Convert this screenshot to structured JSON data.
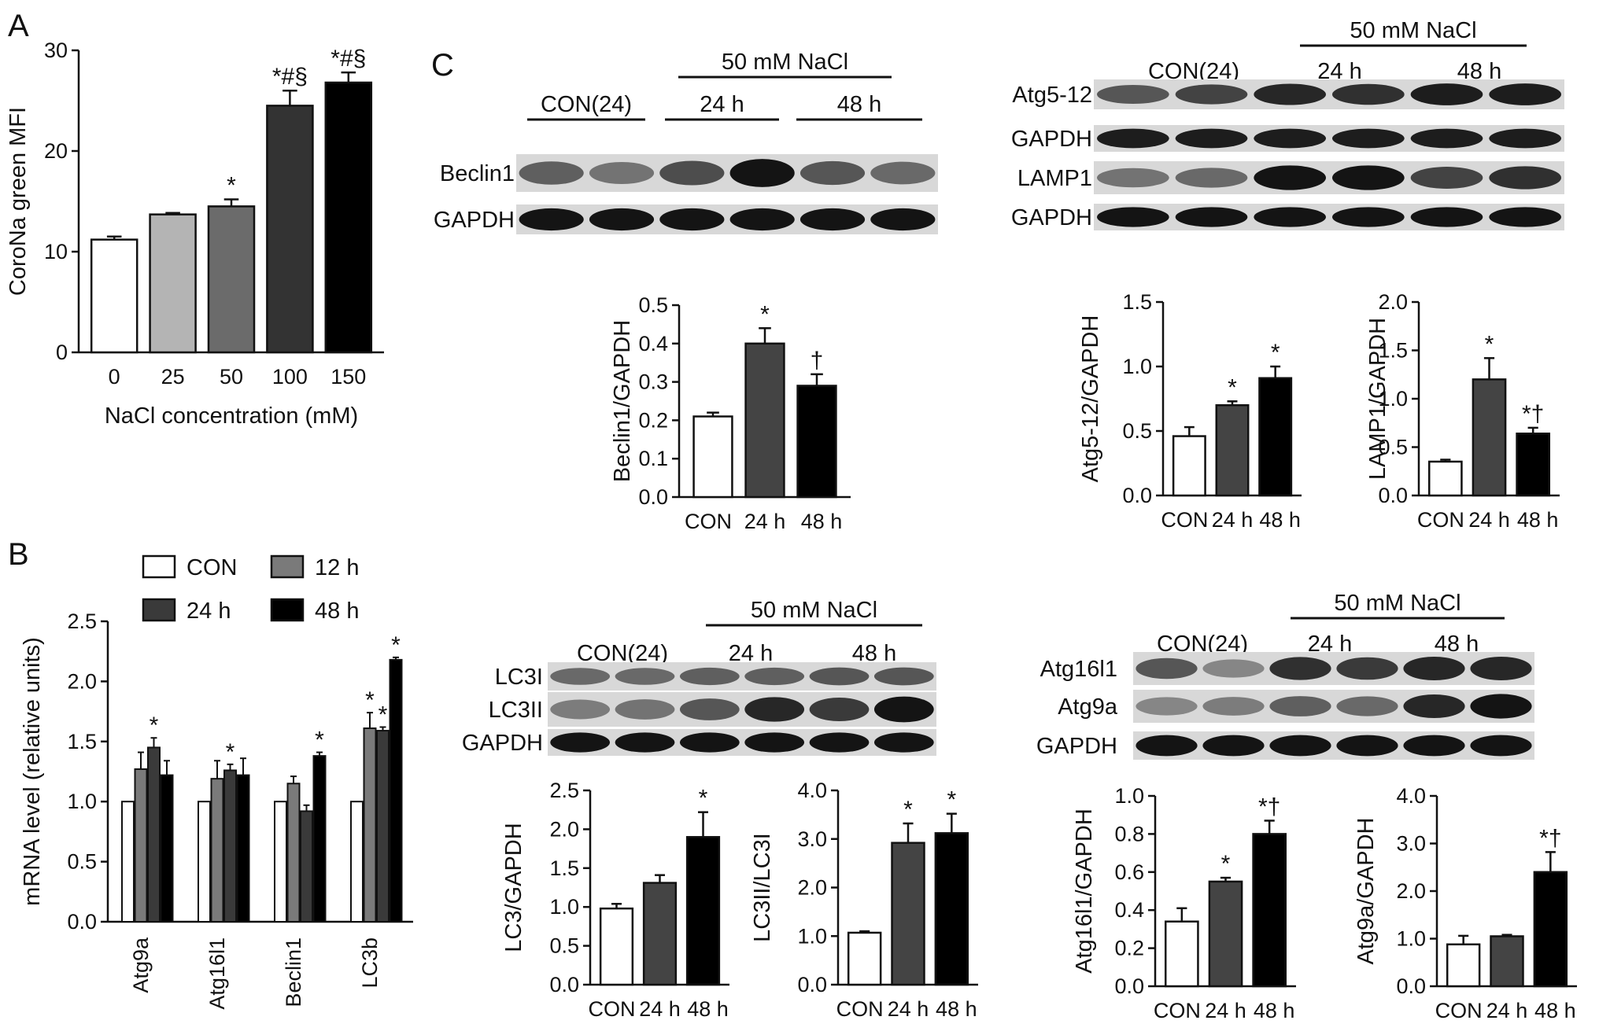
{
  "panel_labels": [
    "A",
    "B",
    "C"
  ],
  "chart_data": [
    {
      "id": "A",
      "type": "bar",
      "categories": [
        "0",
        "25",
        "50",
        "100",
        "150"
      ],
      "values": [
        11.2,
        13.7,
        14.5,
        24.5,
        26.8
      ],
      "errors": [
        0.3,
        0.15,
        0.7,
        1.5,
        1.0
      ],
      "marks": [
        "",
        "",
        "*",
        "*#§",
        "*#§"
      ],
      "colors": [
        "#ffffff",
        "#b4b4b4",
        "#6b6b6b",
        "#333333",
        "#000000"
      ],
      "ylabel": "CoroNa green MFI",
      "xlabel": "NaCl concentration (mM)",
      "ylim": [
        0,
        30
      ],
      "yticks": [
        "0",
        "10",
        "20",
        "30"
      ]
    },
    {
      "id": "B",
      "type": "bar",
      "categories": [
        "Atg9a",
        "Atg16l1",
        "Beclin1",
        "LC3b"
      ],
      "series": [
        {
          "name": "CON",
          "color": "#ffffff",
          "values": [
            1.0,
            1.0,
            1.0,
            1.0
          ],
          "errors": [
            0,
            0,
            0,
            0
          ],
          "marks": [
            "",
            "",
            "",
            ""
          ]
        },
        {
          "name": "12 h",
          "color": "#7a7a7a",
          "values": [
            1.27,
            1.19,
            1.15,
            1.61
          ],
          "errors": [
            0.14,
            0.15,
            0.06,
            0.13
          ],
          "marks": [
            "",
            "",
            "",
            "*"
          ]
        },
        {
          "name": "24 h",
          "color": "#3a3a3a",
          "values": [
            1.45,
            1.26,
            0.92,
            1.59
          ],
          "errors": [
            0.08,
            0.05,
            0.05,
            0.03
          ],
          "marks": [
            "*",
            "*",
            "",
            "*"
          ]
        },
        {
          "name": "48 h",
          "color": "#000000",
          "values": [
            1.22,
            1.22,
            1.38,
            2.18
          ],
          "errors": [
            0.12,
            0.14,
            0.03,
            0.02
          ],
          "marks": [
            "",
            "",
            "*",
            "*"
          ]
        }
      ],
      "ylabel": "mRNA level (relative units)",
      "ylim": [
        0,
        2.5
      ],
      "yticks": [
        "0.0",
        "0.5",
        "1.0",
        "1.5",
        "2.0",
        "2.5"
      ]
    },
    {
      "id": "Beclin1",
      "type": "bar",
      "categories": [
        "CON",
        "24 h",
        "48 h"
      ],
      "values": [
        0.21,
        0.4,
        0.29
      ],
      "errors": [
        0.01,
        0.04,
        0.03
      ],
      "marks": [
        "",
        "*",
        "†"
      ],
      "colors": [
        "#ffffff",
        "#444444",
        "#000000"
      ],
      "ylabel": "Beclin1/GAPDH",
      "ylim": [
        0,
        0.5
      ],
      "yticks": [
        "0.0",
        "0.1",
        "0.2",
        "0.3",
        "0.4",
        "0.5"
      ]
    },
    {
      "id": "Atg5",
      "type": "bar",
      "categories": [
        "CON",
        "24 h",
        "48 h"
      ],
      "values": [
        0.46,
        0.7,
        0.91
      ],
      "errors": [
        0.07,
        0.03,
        0.09
      ],
      "marks": [
        "",
        "*",
        "*"
      ],
      "colors": [
        "#ffffff",
        "#444444",
        "#000000"
      ],
      "ylabel": "Atg5-12/GAPDH",
      "ylim": [
        0,
        1.5
      ],
      "yticks": [
        "0.0",
        "0.5",
        "1.0",
        "1.5"
      ]
    },
    {
      "id": "LAMP1",
      "type": "bar",
      "categories": [
        "CON",
        "24 h",
        "48 h"
      ],
      "values": [
        0.35,
        1.2,
        0.64
      ],
      "errors": [
        0.02,
        0.22,
        0.06
      ],
      "marks": [
        "",
        "*",
        "*†"
      ],
      "colors": [
        "#ffffff",
        "#444444",
        "#000000"
      ],
      "ylabel": "LAMP1/GAPDH",
      "ylim": [
        0,
        2.0
      ],
      "yticks": [
        "0.0",
        "0.5",
        "1.0",
        "1.5",
        "2.0"
      ]
    },
    {
      "id": "LC3",
      "type": "bar",
      "categories": [
        "CON",
        "24 h",
        "48 h"
      ],
      "values": [
        0.98,
        1.31,
        1.9
      ],
      "errors": [
        0.06,
        0.1,
        0.32
      ],
      "marks": [
        "",
        "",
        "*"
      ],
      "colors": [
        "#ffffff",
        "#444444",
        "#000000"
      ],
      "ylabel": "LC3/GAPDH",
      "ylim": [
        0,
        2.5
      ],
      "yticks": [
        "0.0",
        "0.5",
        "1.0",
        "1.5",
        "2.0",
        "2.5"
      ]
    },
    {
      "id": "LC3ratio",
      "type": "bar",
      "categories": [
        "CON",
        "24 h",
        "48 h"
      ],
      "values": [
        1.07,
        2.92,
        3.12
      ],
      "errors": [
        0.03,
        0.4,
        0.4
      ],
      "marks": [
        "",
        "*",
        "*"
      ],
      "colors": [
        "#ffffff",
        "#444444",
        "#000000"
      ],
      "ylabel": "LC3II/LC3I",
      "ylim": [
        0,
        4.0
      ],
      "yticks": [
        "0.0",
        "1.0",
        "2.0",
        "3.0",
        "4.0"
      ]
    },
    {
      "id": "Atg16",
      "type": "bar",
      "categories": [
        "CON",
        "24 h",
        "48 h"
      ],
      "values": [
        0.34,
        0.55,
        0.8
      ],
      "errors": [
        0.07,
        0.02,
        0.07
      ],
      "marks": [
        "",
        "*",
        "*†"
      ],
      "colors": [
        "#ffffff",
        "#444444",
        "#000000"
      ],
      "ylabel": "Atg16l1/GAPDH",
      "ylim": [
        0,
        1.0
      ],
      "yticks": [
        "0.0",
        "0.2",
        "0.4",
        "0.6",
        "0.8",
        "1.0"
      ]
    },
    {
      "id": "Atg9",
      "type": "bar",
      "categories": [
        "CON",
        "24 h",
        "48 h"
      ],
      "values": [
        0.88,
        1.05,
        2.4
      ],
      "errors": [
        0.18,
        0.03,
        0.42
      ],
      "marks": [
        "",
        "",
        "*†"
      ],
      "colors": [
        "#ffffff",
        "#444444",
        "#000000"
      ],
      "ylabel": "Atg9a/GAPDH",
      "ylim": [
        0,
        4.0
      ],
      "yticks": [
        "0.0",
        "1.0",
        "2.0",
        "3.0",
        "4.0"
      ]
    }
  ],
  "blots": [
    {
      "id": "b1",
      "con": "CON(24)",
      "nacl": "50 mM NaCl",
      "t24": "24 h",
      "t48": "48 h",
      "rows": [
        {
          "label": "Beclin1",
          "intensity": [
            0.55,
            0.45,
            0.65,
            0.95,
            0.6,
            0.5
          ]
        },
        {
          "label": "GAPDH",
          "intensity": [
            0.95,
            0.95,
            0.95,
            0.95,
            0.95,
            0.95
          ]
        }
      ]
    },
    {
      "id": "b2",
      "con": "CON(24)",
      "nacl": "50 mM NaCl",
      "t24": "24 h",
      "t48": "48 h",
      "rows": [
        {
          "label": "Atg5-12",
          "intensity": [
            0.6,
            0.7,
            0.85,
            0.8,
            0.9,
            0.9
          ]
        },
        {
          "label": "GAPDH",
          "intensity": [
            0.9,
            0.9,
            0.9,
            0.9,
            0.9,
            0.9
          ]
        },
        {
          "label": "LAMP1",
          "intensity": [
            0.45,
            0.5,
            0.95,
            0.95,
            0.7,
            0.8
          ]
        },
        {
          "label": "GAPDH",
          "intensity": [
            0.95,
            0.95,
            0.95,
            0.95,
            0.95,
            0.95
          ]
        }
      ]
    },
    {
      "id": "b3",
      "con": "CON(24)",
      "nacl": "50 mM NaCl",
      "t24": "24 h",
      "t48": "48 h",
      "rows": [
        {
          "label": "LC3I",
          "intensity": [
            0.5,
            0.5,
            0.55,
            0.55,
            0.6,
            0.6
          ]
        },
        {
          "label": "LC3II",
          "intensity": [
            0.4,
            0.45,
            0.6,
            0.85,
            0.75,
            0.95
          ]
        },
        {
          "label": "GAPDH",
          "intensity": [
            0.95,
            0.95,
            0.95,
            0.95,
            0.95,
            0.95
          ]
        }
      ]
    },
    {
      "id": "b4",
      "con": "CON(24)",
      "nacl": "50 mM NaCl",
      "t24": "24 h",
      "t48": "48 h",
      "rows": [
        {
          "label": "Atg16l1",
          "intensity": [
            0.6,
            0.35,
            0.8,
            0.75,
            0.85,
            0.85
          ]
        },
        {
          "label": "Atg9a",
          "intensity": [
            0.35,
            0.4,
            0.55,
            0.5,
            0.85,
            0.95
          ]
        },
        {
          "label": "GAPDH",
          "intensity": [
            0.95,
            0.95,
            0.95,
            0.95,
            0.95,
            0.95
          ]
        }
      ]
    }
  ]
}
